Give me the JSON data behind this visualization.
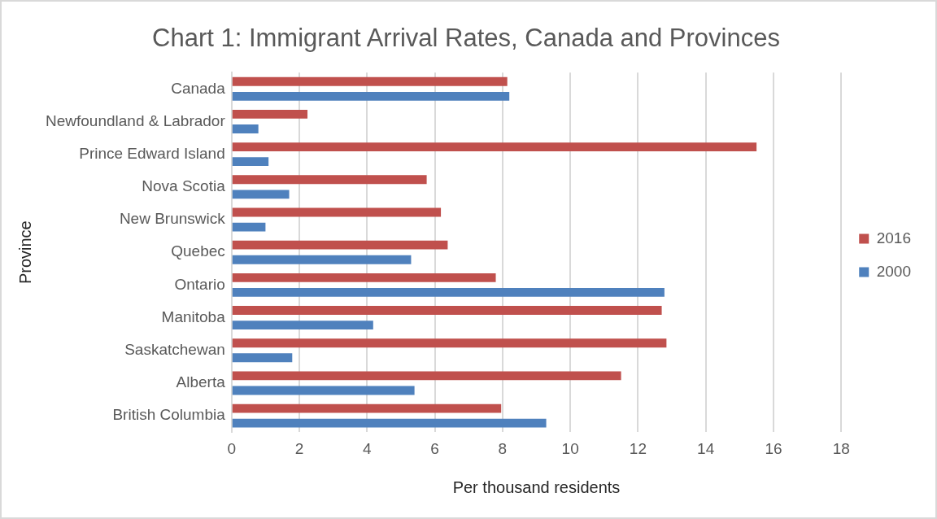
{
  "chart_data": {
    "type": "bar",
    "orientation": "horizontal",
    "title": "Chart 1: Immigrant Arrival Rates, Canada and Provinces",
    "xlabel": "Per thousand residents",
    "ylabel": "Province",
    "categories": [
      "Canada",
      "Newfoundland & Labrador",
      "Prince Edward Island",
      "Nova Scotia",
      "New Brunswick",
      "Quebec",
      "Ontario",
      "Manitoba",
      "Saskatchewan",
      "Alberta",
      "British Columbia"
    ],
    "series": [
      {
        "name": "2016",
        "color": "#c0504d",
        "values": [
          8.14,
          2.24,
          15.5,
          5.76,
          6.18,
          6.38,
          7.8,
          12.7,
          12.84,
          11.5,
          7.96
        ]
      },
      {
        "name": "2000",
        "color": "#4f81bd",
        "values": [
          8.2,
          0.79,
          1.09,
          1.7,
          1.0,
          5.3,
          12.78,
          4.18,
          1.79,
          5.4,
          9.29
        ]
      }
    ],
    "xlim": [
      0,
      18
    ],
    "xticks": [
      0,
      2,
      4,
      6,
      8,
      10,
      12,
      14,
      16,
      18
    ],
    "grid": "x",
    "legend": "right"
  }
}
